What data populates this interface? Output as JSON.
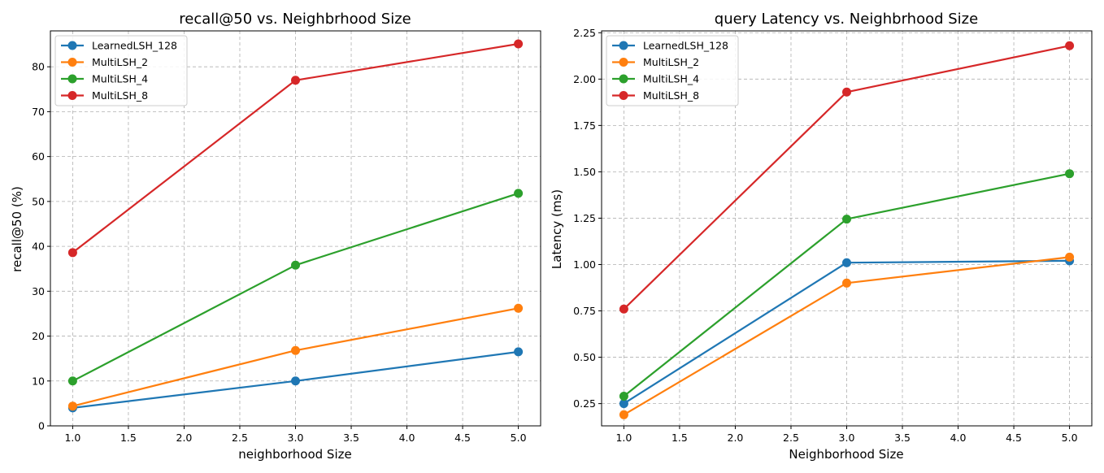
{
  "chart_data": [
    {
      "type": "line",
      "title": "recall@50 vs. Neighbrhood Size",
      "xlabel": "neighborhood Size",
      "ylabel": "recall@50 (%)",
      "xlim": [
        0.8,
        5.2
      ],
      "ylim": [
        0,
        88
      ],
      "xticks": [
        1.0,
        1.5,
        2.0,
        2.5,
        3.0,
        3.5,
        4.0,
        4.5,
        5.0
      ],
      "xtick_labels": [
        "1.0",
        "1.5",
        "2.0",
        "2.5",
        "3.0",
        "3.5",
        "4.0",
        "4.5",
        "5.0"
      ],
      "yticks": [
        0,
        10,
        20,
        30,
        40,
        50,
        60,
        70,
        80
      ],
      "ytick_labels": [
        "0",
        "10",
        "20",
        "30",
        "40",
        "50",
        "60",
        "70",
        "80"
      ],
      "grid": true,
      "legend_position": "upper-left",
      "x": [
        1.0,
        3.0,
        5.0
      ],
      "series": [
        {
          "name": "LearnedLSH_128",
          "color": "#1f77b4",
          "values": [
            4.0,
            10.0,
            16.5
          ]
        },
        {
          "name": "MultiLSH_2",
          "color": "#ff7f0e",
          "values": [
            4.4,
            16.8,
            26.2
          ]
        },
        {
          "name": "MultiLSH_4",
          "color": "#2ca02c",
          "values": [
            10.0,
            35.8,
            51.8
          ]
        },
        {
          "name": "MultiLSH_8",
          "color": "#d62728",
          "values": [
            38.6,
            77.0,
            85.1
          ]
        }
      ]
    },
    {
      "type": "line",
      "title": "query Latency vs. Neighbrhood Size",
      "xlabel": "Neighborhood Size",
      "ylabel": "Latency (ms)",
      "xlim": [
        0.8,
        5.2
      ],
      "ylim": [
        0.13,
        2.26
      ],
      "xticks": [
        1.0,
        1.5,
        2.0,
        2.5,
        3.0,
        3.5,
        4.0,
        4.5,
        5.0
      ],
      "xtick_labels": [
        "1.0",
        "1.5",
        "2.0",
        "2.5",
        "3.0",
        "3.5",
        "4.0",
        "4.5",
        "5.0"
      ],
      "yticks": [
        0.25,
        0.5,
        0.75,
        1.0,
        1.25,
        1.5,
        1.75,
        2.0,
        2.25
      ],
      "ytick_labels": [
        "0.25",
        "0.50",
        "0.75",
        "1.00",
        "1.25",
        "1.50",
        "1.75",
        "2.00",
        "2.25"
      ],
      "grid": true,
      "legend_position": "upper-left",
      "x": [
        1.0,
        3.0,
        5.0
      ],
      "series": [
        {
          "name": "LearnedLSH_128",
          "color": "#1f77b4",
          "values": [
            0.25,
            1.01,
            1.02
          ]
        },
        {
          "name": "MultiLSH_2",
          "color": "#ff7f0e",
          "values": [
            0.19,
            0.9,
            1.04
          ]
        },
        {
          "name": "MultiLSH_4",
          "color": "#2ca02c",
          "values": [
            0.29,
            1.245,
            1.49
          ]
        },
        {
          "name": "MultiLSH_8",
          "color": "#d62728",
          "values": [
            0.76,
            1.93,
            2.18
          ]
        }
      ]
    }
  ]
}
